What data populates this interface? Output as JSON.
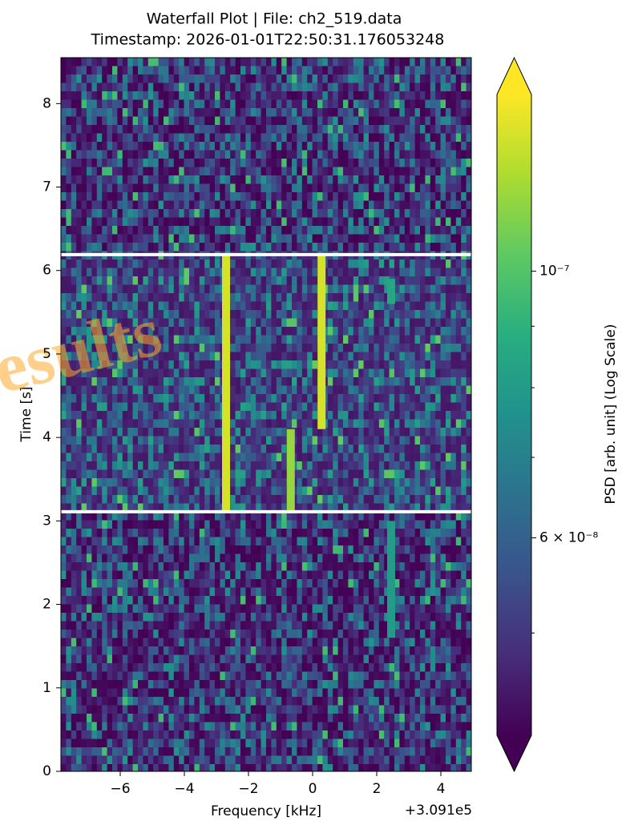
{
  "chart_data": {
    "type": "heatmap",
    "title": "Waterfall Plot | File: ch2_519.data",
    "subtitle": "Timestamp: 2026-01-01T22:50:31.176053248",
    "x_label": "Frequency [kHz]",
    "y_label": "Time [s]",
    "x_offset_label": "+3.091e5",
    "xlim": [
      -7.85,
      4.95
    ],
    "ylim": [
      0,
      8.55
    ],
    "xticks": [
      {
        "value": -6,
        "label": "−6"
      },
      {
        "value": -4,
        "label": "−4"
      },
      {
        "value": -2,
        "label": "−2"
      },
      0,
      2,
      4
    ],
    "yticks": [
      0,
      1,
      2,
      3,
      4,
      5,
      6,
      7,
      8
    ],
    "colorbar_label": "PSD [arb. unit] (Log Scale)",
    "colorbar_scale": "log",
    "colormap": "viridis",
    "clim": [
      4.11e-08,
      1.403e-07
    ],
    "cticks": [
      {
        "value": 1e-07,
        "label": "10⁻⁷"
      },
      {
        "value": 6e-08,
        "label": "6 × 10⁻⁸"
      }
    ],
    "cticks_minor": [
      5e-08,
      7e-08,
      8e-08,
      9e-08
    ],
    "highlight_times": [
      3.11,
      6.19
    ],
    "tracks": {
      "frequency": [
        -2.7,
        0.28,
        -0.68,
        2.45,
        2.45
      ],
      "start": [
        3.1,
        4.1,
        3.1,
        1.6,
        5.6
      ],
      "end": [
        6.2,
        6.2,
        4.1,
        3.0,
        5.9
      ],
      "values": [
        1.3e-07,
        1.3e-07,
        1.15e-07,
        8e-08,
        8.5e-08
      ]
    },
    "watermark": "esults"
  }
}
